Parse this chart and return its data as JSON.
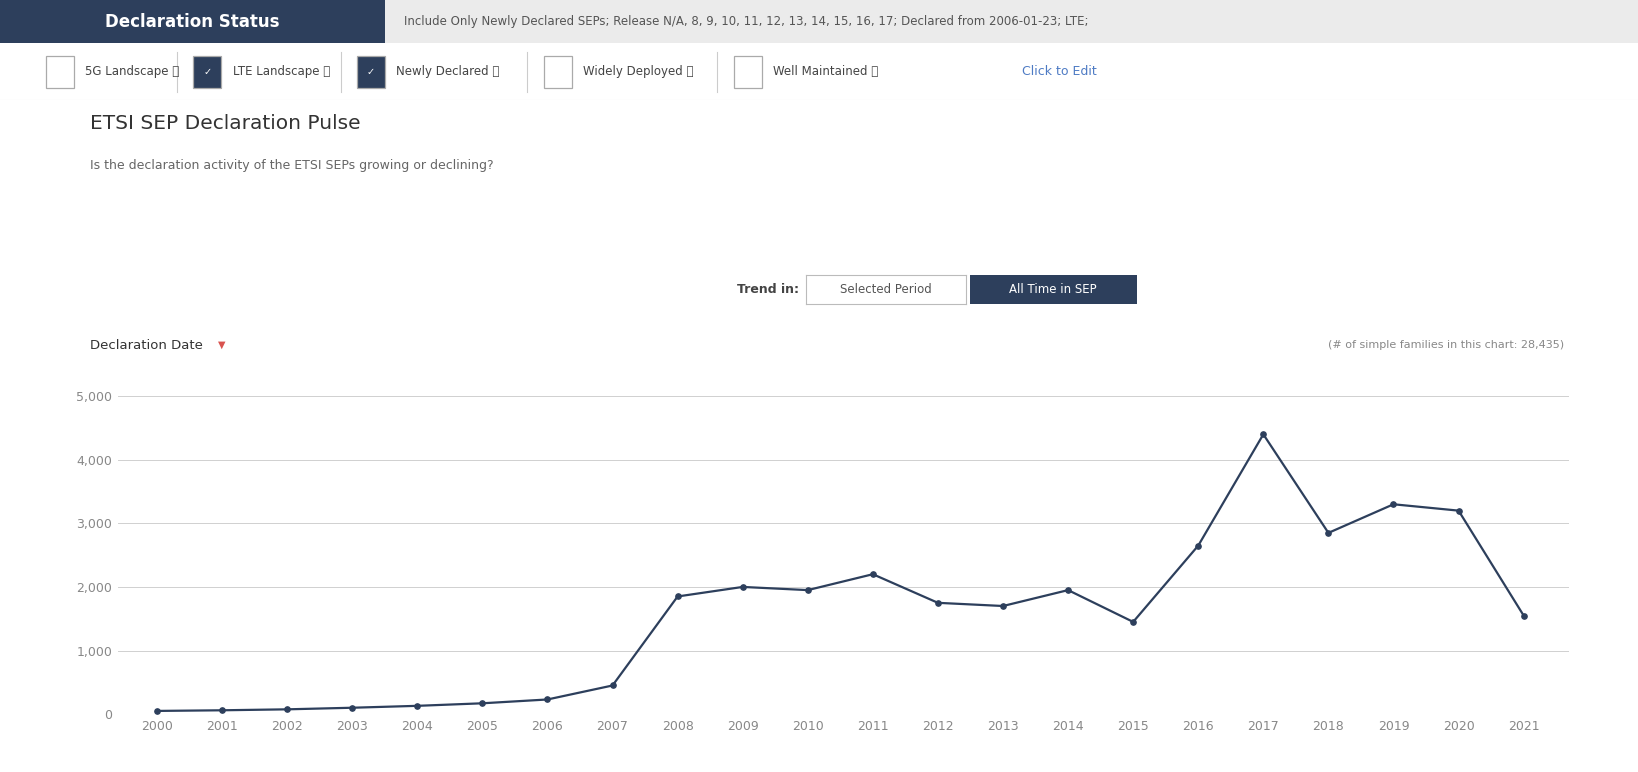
{
  "title": "ETSI SEP Declaration Pulse",
  "subtitle": "Is the declaration activity of the ETSI SEPs growing or declining?",
  "header_title": "Declaration Status",
  "header_filter": "Include Only Newly Declared SEPs; Release N/A, 8, 9, 10, 11, 12, 13, 14, 15, 16, 17; Declared from 2006-01-23; LTE;",
  "trend_label": "Trend in:",
  "selected_period_label": "Selected Period",
  "all_time_label": "All Time in SEP",
  "declaration_date_label": "Declaration Date",
  "families_count_label": "(# of simple families in this chart: 28,435)",
  "years": [
    2000,
    2001,
    2002,
    2003,
    2004,
    2005,
    2006,
    2007,
    2008,
    2009,
    2010,
    2011,
    2012,
    2013,
    2014,
    2015,
    2016,
    2017,
    2018,
    2019,
    2020,
    2021
  ],
  "values": [
    50,
    60,
    75,
    100,
    130,
    170,
    230,
    450,
    1850,
    2000,
    1950,
    2200,
    1750,
    1700,
    1950,
    1450,
    2650,
    4400,
    2850,
    3300,
    3200,
    1550
  ],
  "line_color": "#2d3f5c",
  "marker_color": "#2d3f5c",
  "grid_color": "#d0d0d0",
  "background_color": "#ffffff",
  "header_bg": "#2d3f5c",
  "header_text_color": "#ffffff",
  "filter_bg": "#ebebeb",
  "filter_text_color": "#555555",
  "title_color": "#333333",
  "subtitle_color": "#666666",
  "tick_label_color": "#888888",
  "button_active_bg": "#2d3f5c",
  "button_active_text": "#ffffff",
  "button_inactive_text": "#555555",
  "trend_text_color": "#444444",
  "link_color": "#4e7bc4",
  "checkbox_checked_color": "#2d3f5c",
  "sep_line_color": "#cccccc",
  "ylim": [
    0,
    5500
  ],
  "yticks": [
    0,
    1000,
    2000,
    3000,
    4000,
    5000
  ],
  "figsize": [
    16.38,
    7.72
  ]
}
